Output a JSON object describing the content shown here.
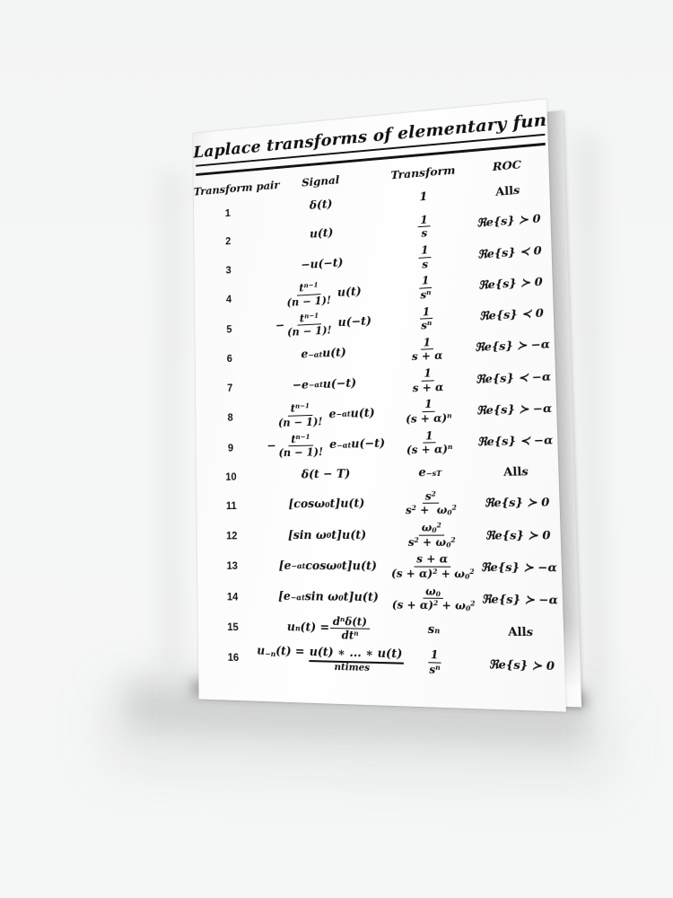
{
  "card": {
    "title": "Laplace transforms of elementary functions",
    "columns": [
      "Transform pair",
      "Signal",
      "Transform",
      "ROC"
    ],
    "rows": [
      {
        "num": "1",
        "signal_html": "δ(t)",
        "transform_html": "1",
        "roc_html": "<span class='up'>All</span> s"
      },
      {
        "num": "2",
        "signal_html": "u(t)",
        "transform_html": "<span class='fr'><span class='nu'>1</span><span class='de'>s</span></span>",
        "roc_html": "ℜe{s} ≻ 0"
      },
      {
        "num": "3",
        "signal_html": "−u(−t)",
        "transform_html": "<span class='fr'><span class='nu'>1</span><span class='de'>s</span></span>",
        "roc_html": "ℜe{s} ≺ 0"
      },
      {
        "num": "4",
        "signal_html": "<span class='fr'><span class='nu'>t<sup>n−1</sup></span><span class='de'>(n − 1)!</span></span>&nbsp;u(t)",
        "transform_html": "<span class='fr'><span class='nu'>1</span><span class='de'>s<sup>n</sup></span></span>",
        "roc_html": "ℜe{s} ≻ 0"
      },
      {
        "num": "5",
        "signal_html": "−<span class='fr'><span class='nu'>t<sup>n−1</sup></span><span class='de'>(n − 1)!</span></span>&nbsp;u(−t)",
        "transform_html": "<span class='fr'><span class='nu'>1</span><span class='de'>s<sup>n</sup></span></span>",
        "roc_html": "ℜe{s} ≺ 0"
      },
      {
        "num": "6",
        "signal_html": "e<sup>−αt</sup>u(t)",
        "transform_html": "<span class='fr'><span class='nu'>1</span><span class='de'>s + α</span></span>",
        "roc_html": "ℜe{s} ≻ −α"
      },
      {
        "num": "7",
        "signal_html": "−e<sup>−αt</sup>u(−t)",
        "transform_html": "<span class='fr'><span class='nu'>1</span><span class='de'>s + α</span></span>",
        "roc_html": "ℜe{s} ≺ −α"
      },
      {
        "num": "8",
        "signal_html": "<span class='fr'><span class='nu'>t<sup>n−1</sup></span><span class='de'>(n − 1)!</span></span>&nbsp;e<sup>−αt</sup>u(t)",
        "transform_html": "<span class='fr'><span class='nu'>1</span><span class='de'>(s + α)<sup>n</sup></span></span>",
        "roc_html": "ℜe{s} ≻ −α"
      },
      {
        "num": "9",
        "signal_html": "−<span class='fr'><span class='nu'>t<sup>n−1</sup></span><span class='de'>(n − 1)!</span></span>&nbsp;e<sup>−αt</sup>u(−t)",
        "transform_html": "<span class='fr'><span class='nu'>1</span><span class='de'>(s + α)<sup>n</sup></span></span>",
        "roc_html": "ℜe{s} ≺ −α"
      },
      {
        "num": "10",
        "signal_html": "δ(t − T)",
        "transform_html": "e<sup>−sT</sup>",
        "roc_html": "<span class='up'>All</span> s"
      },
      {
        "num": "11",
        "signal_html": "[cosω<sub>0</sub>t]u(t)",
        "transform_html": "<span class='fr'><span class='nu'>s<sup>2</sup></span><span class='de'>s<sup>2</sup> +&nbsp; ω<sub>0</sub><sup>2</sup></span></span>",
        "roc_html": "ℜe{s} ≻ 0"
      },
      {
        "num": "12",
        "signal_html": "[sin ω<sub>0</sub>t]u(t)",
        "transform_html": "<span class='fr'><span class='nu'>ω<sub>0</sub><sup>2</sup></span><span class='de'>s<sup>2</sup> + ω<sub>0</sub><sup>2</sup></span></span>",
        "roc_html": "ℜe{s} ≻ 0"
      },
      {
        "num": "13",
        "signal_html": "[e<sup>−αt</sup>cosω<sub>0</sub>t]u(t)",
        "transform_html": "<span class='fr'><span class='nu'>s + α</span><span class='de'>(s + α)<sup>2</sup> + ω<sub>0</sub><sup>2</sup></span></span>",
        "roc_html": "ℜe{s} ≻ −α"
      },
      {
        "num": "14",
        "signal_html": "[e<sup>−αt</sup> sin ω<sub>0</sub>t]u(t)",
        "transform_html": "<span class='fr'><span class='nu'>ω<sub>0</sub></span><span class='de'>(s + α)<sup>2</sup> + ω<sub>0</sub><sup>2</sup></span></span>",
        "roc_html": "ℜe{s} ≻ −α"
      },
      {
        "num": "15",
        "signal_html": "u<sub>n</sub>(t) = <span class='fr'><span class='nu'>d<sup>n</sup>δ(t)</span><span class='de'>dt<sup>n</sup></span></span>",
        "transform_html": "s<sup>n</sup>",
        "roc_html": "<span class='up'>All</span> s"
      },
      {
        "num": "16",
        "signal_html": "<span class='stk'><span class='top'>u<sub>−n</sub>(t) = <span class='ub'>u(t) ∗ ... ∗ u(t)</span></span><span class='nt'>ntimes</span></span>",
        "transform_html": "<span class='fr'><span class='nu'>1</span><span class='de'>s<sup>n</sup></span></span>",
        "roc_html": "ℜe{s} ≻ 0"
      }
    ]
  }
}
